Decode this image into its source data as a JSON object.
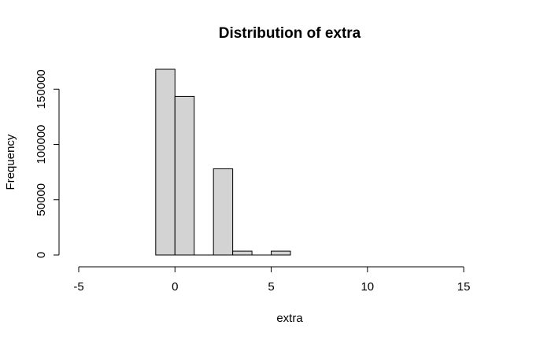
{
  "chart_data": {
    "type": "bar",
    "title": "Distribution of extra",
    "xlabel": "extra",
    "ylabel": "Frequency",
    "bins": [
      {
        "x0": -1,
        "x1": 0,
        "count": 168000
      },
      {
        "x0": 0,
        "x1": 1,
        "count": 143500
      },
      {
        "x0": 1,
        "x1": 2,
        "count": 0
      },
      {
        "x0": 2,
        "x1": 3,
        "count": 78000
      },
      {
        "x0": 3,
        "x1": 4,
        "count": 3500
      },
      {
        "x0": 4,
        "x1": 5,
        "count": 0
      },
      {
        "x0": 5,
        "x1": 6,
        "count": 3500
      }
    ],
    "xlim": [
      -5,
      17
    ],
    "ylim": [
      0,
      168000
    ],
    "x_ticks": [
      -5,
      0,
      5,
      10,
      15
    ],
    "y_ticks": [
      0,
      50000,
      100000,
      150000
    ],
    "bar_color": "#d3d3d3",
    "grid": false,
    "legend": "none"
  }
}
